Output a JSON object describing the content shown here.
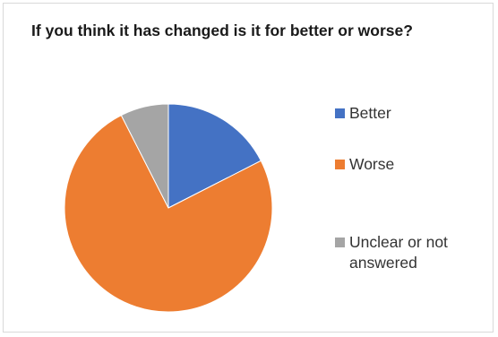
{
  "chart_data": {
    "type": "pie",
    "title": "If you think it has changed is it for better or worse?",
    "legend_position": "right",
    "start_angle_deg": 0,
    "direction": "clockwise",
    "slices": [
      {
        "label": "Better",
        "value": 17.5,
        "color": "#4472c4"
      },
      {
        "label": "Worse",
        "value": 75.0,
        "color": "#ed7d31"
      },
      {
        "label": "Unclear or not answered",
        "value": 7.5,
        "color": "#a5a5a5"
      }
    ]
  }
}
